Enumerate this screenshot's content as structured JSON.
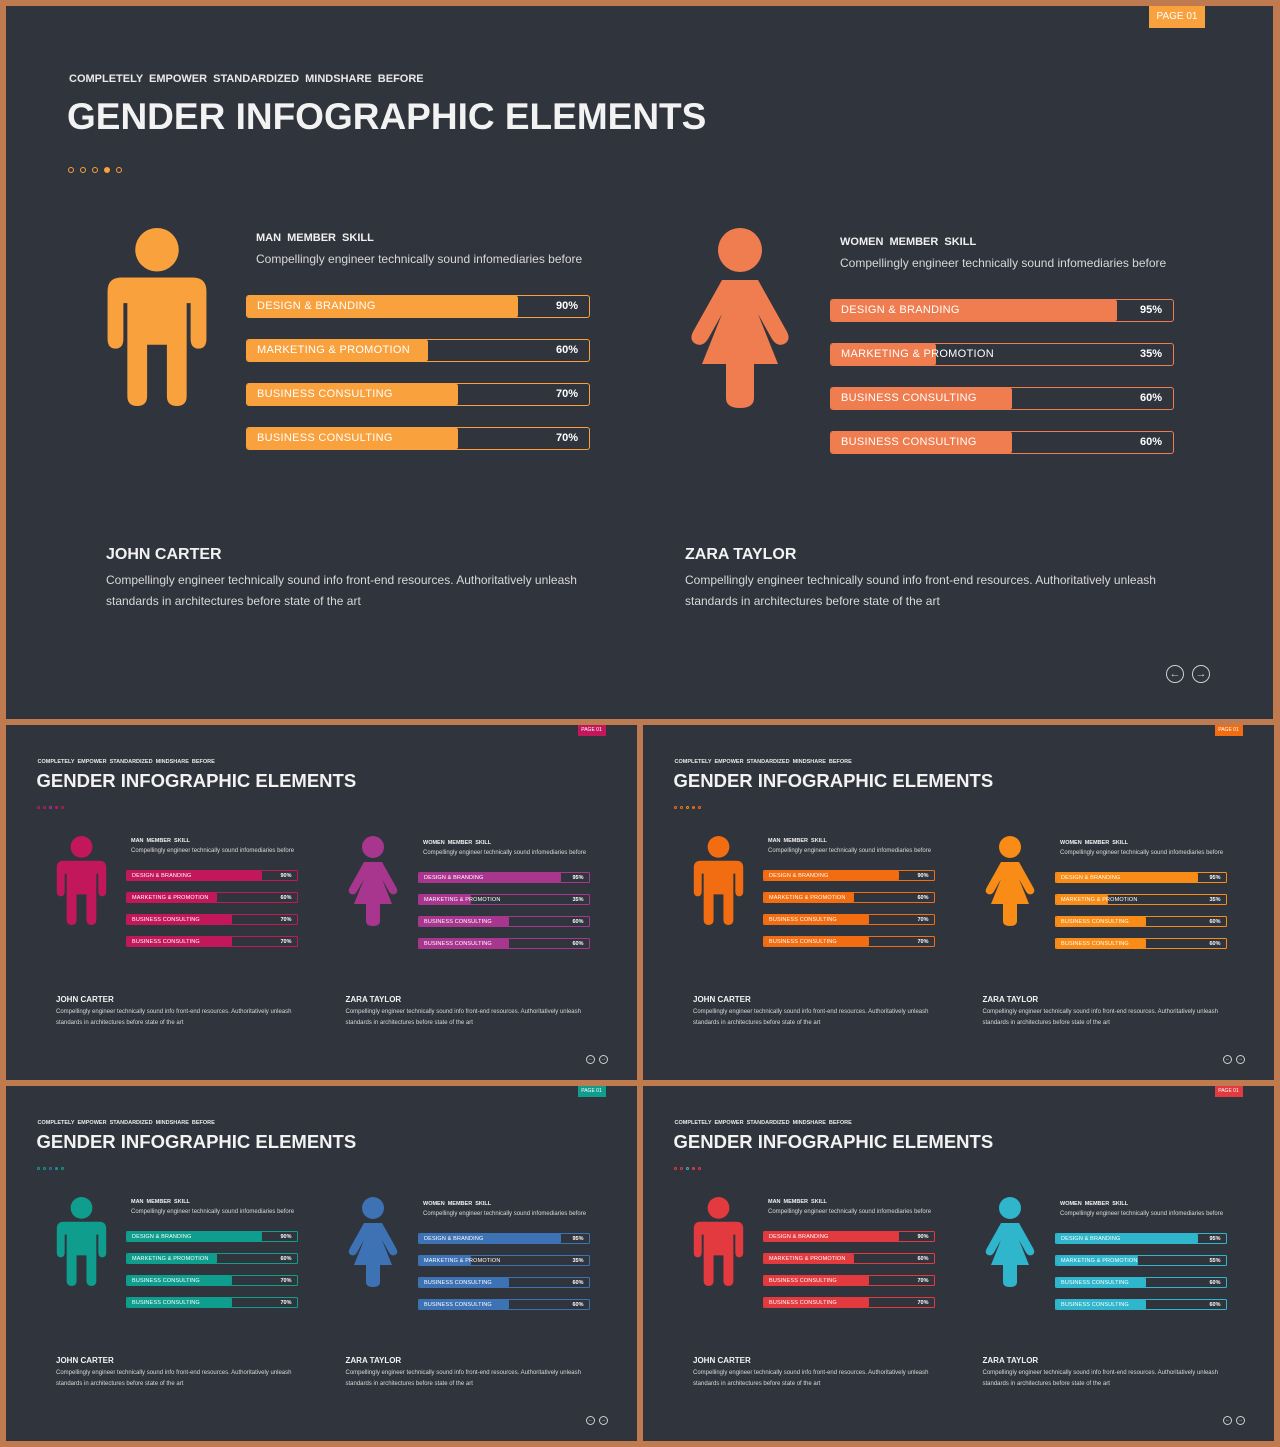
{
  "slides": [
    {
      "page_label": "PAGE 01",
      "subtitle": "COMPLETELY EMPOWER STANDARDIZED MINDSHARE BEFORE",
      "title": "GENDER INFOGRAPHIC ELEMENTS",
      "colors": {
        "man": "#f8a13d",
        "woman": "#ef7d4f",
        "badge": "#f8a13d",
        "dots": [
          "#f8a13d",
          "#f8a13d",
          "#f8a13d",
          "#f8a13d",
          "#f8a13d"
        ]
      },
      "man": {
        "heading": "MAN MEMBER SKILL",
        "desc": "Compellingly engineer technically sound infomediaries before",
        "skills": [
          {
            "label": "DESIGN & BRANDING",
            "percent": 90,
            "percent_label": "90%"
          },
          {
            "label": "MARKETING & PROMOTION",
            "percent": 60,
            "percent_label": "60%"
          },
          {
            "label": "BUSINESS CONSULTING",
            "percent": 70,
            "percent_label": "70%"
          },
          {
            "label": "BUSINESS CONSULTING",
            "percent": 70,
            "percent_label": "70%"
          }
        ]
      },
      "woman": {
        "heading": "WOMEN MEMBER SKILL",
        "desc": "Compellingly engineer technically sound infomediaries before",
        "skills": [
          {
            "label": "DESIGN & BRANDING",
            "percent": 95,
            "percent_label": "95%"
          },
          {
            "label": "MARKETING & PROMOTION",
            "percent": 35,
            "percent_label": "35%"
          },
          {
            "label": "BUSINESS CONSULTING",
            "percent": 60,
            "percent_label": "60%"
          },
          {
            "label": "BUSINESS CONSULTING",
            "percent": 60,
            "percent_label": "60%"
          }
        ]
      },
      "people": [
        {
          "name": "JOHN CARTER",
          "bio1": "Compellingly engineer technically sound info front-end resources. Authoritatively unleash",
          "bio2": "standards in architectures before state of the art"
        },
        {
          "name": "ZARA TAYLOR",
          "bio1": "Compellingly engineer technically sound info front-end resources. Authoritatively unleash",
          "bio2": "standards in architectures before state of the art"
        }
      ],
      "nav": {
        "prev_icon": "arrow-left-circle-icon",
        "next_icon": "arrow-right-circle-icon"
      }
    },
    {
      "page_label": "PAGE 01",
      "subtitle": "COMPLETELY EMPOWER STANDARDIZED MINDSHARE BEFORE",
      "title": "GENDER INFOGRAPHIC ELEMENTS",
      "colors": {
        "man": "#c2185b",
        "woman": "#a8368f",
        "badge": "#c2185b",
        "dots": [
          "#c2185b",
          "#c2185b",
          "#a8368f",
          "#c2185b",
          "#c2185b"
        ]
      },
      "man": {
        "heading": "MAN MEMBER SKILL",
        "desc": "Compellingly engineer technically sound infomediaries before",
        "skills": [
          {
            "label": "DESIGN & BRANDING",
            "percent": 90,
            "percent_label": "90%"
          },
          {
            "label": "MARKETING & PROMOTION",
            "percent": 60,
            "percent_label": "60%"
          },
          {
            "label": "BUSINESS CONSULTING",
            "percent": 70,
            "percent_label": "70%"
          },
          {
            "label": "BUSINESS CONSULTING",
            "percent": 70,
            "percent_label": "70%"
          }
        ]
      },
      "woman": {
        "heading": "WOMEN MEMBER SKILL",
        "desc": "Compellingly engineer technically sound infomediaries before",
        "skills": [
          {
            "label": "DESIGN & BRANDING",
            "percent": 95,
            "percent_label": "95%"
          },
          {
            "label": "MARKETING & PROMOTION",
            "percent": 35,
            "percent_label": "35%"
          },
          {
            "label": "BUSINESS CONSULTING",
            "percent": 60,
            "percent_label": "60%"
          },
          {
            "label": "BUSINESS CONSULTING",
            "percent": 60,
            "percent_label": "60%"
          }
        ]
      },
      "people": [
        {
          "name": "JOHN CARTER",
          "bio1": "Compellingly engineer technically sound info front-end resources. Authoritatively unleash",
          "bio2": "standards in architectures before state of the art"
        },
        {
          "name": "ZARA TAYLOR",
          "bio1": "Compellingly engineer technically sound info front-end resources. Authoritatively unleash",
          "bio2": "standards in architectures before state of the art"
        }
      ],
      "nav": {
        "prev_icon": "arrow-left-circle-icon",
        "next_icon": "arrow-right-circle-icon"
      }
    },
    {
      "page_label": "PAGE 01",
      "subtitle": "COMPLETELY EMPOWER STANDARDIZED MINDSHARE BEFORE",
      "title": "GENDER INFOGRAPHIC ELEMENTS",
      "colors": {
        "man": "#f26c12",
        "woman": "#f88c16",
        "badge": "#f26c12",
        "dots": [
          "#f26c12",
          "#f26c12",
          "#f88c16",
          "#f26c12",
          "#f26c12"
        ]
      },
      "man": {
        "heading": "MAN MEMBER SKILL",
        "desc": "Compellingly engineer technically sound infomediaries before",
        "skills": [
          {
            "label": "DESIGN & BRANDING",
            "percent": 90,
            "percent_label": "90%"
          },
          {
            "label": "MARKETING & PROMOTION",
            "percent": 60,
            "percent_label": "60%"
          },
          {
            "label": "BUSINESS CONSULTING",
            "percent": 70,
            "percent_label": "70%"
          },
          {
            "label": "BUSINESS CONSULTING",
            "percent": 70,
            "percent_label": "70%"
          }
        ]
      },
      "woman": {
        "heading": "WOMEN MEMBER SKILL",
        "desc": "Compellingly engineer technically sound infomediaries before",
        "skills": [
          {
            "label": "DESIGN & BRANDING",
            "percent": 95,
            "percent_label": "95%"
          },
          {
            "label": "MARKETING & PROMOTION",
            "percent": 35,
            "percent_label": "35%"
          },
          {
            "label": "BUSINESS CONSULTING",
            "percent": 60,
            "percent_label": "60%"
          },
          {
            "label": "BUSINESS CONSULTING",
            "percent": 60,
            "percent_label": "60%"
          }
        ]
      },
      "people": [
        {
          "name": "JOHN CARTER",
          "bio1": "Compellingly engineer technically sound info front-end resources. Authoritatively unleash",
          "bio2": "standards in architectures before state of the art"
        },
        {
          "name": "ZARA TAYLOR",
          "bio1": "Compellingly engineer technically sound info front-end resources. Authoritatively unleash",
          "bio2": "standards in architectures before state of the art"
        }
      ],
      "nav": {
        "prev_icon": "arrow-left-circle-icon",
        "next_icon": "arrow-right-circle-icon"
      }
    },
    {
      "page_label": "PAGE 01",
      "subtitle": "COMPLETELY EMPOWER STANDARDIZED MINDSHARE BEFORE",
      "title": "GENDER INFOGRAPHIC ELEMENTS",
      "colors": {
        "man": "#0f9d8e",
        "woman": "#3d72b4",
        "badge": "#0f9d8e",
        "dots": [
          "#0f9d8e",
          "#0f9d8e",
          "#3d72b4",
          "#0f9d8e",
          "#0f9d8e"
        ]
      },
      "man": {
        "heading": "MAN MEMBER SKILL",
        "desc": "Compellingly engineer technically sound infomediaries before",
        "skills": [
          {
            "label": "DESIGN & BRANDING",
            "percent": 90,
            "percent_label": "90%"
          },
          {
            "label": "MARKETING & PROMOTION",
            "percent": 60,
            "percent_label": "60%"
          },
          {
            "label": "BUSINESS CONSULTING",
            "percent": 70,
            "percent_label": "70%"
          },
          {
            "label": "BUSINESS CONSULTING",
            "percent": 70,
            "percent_label": "70%"
          }
        ]
      },
      "woman": {
        "heading": "WOMEN MEMBER SKILL",
        "desc": "Compellingly engineer technically sound infomediaries before",
        "skills": [
          {
            "label": "DESIGN & BRANDING",
            "percent": 95,
            "percent_label": "95%"
          },
          {
            "label": "MARKETING & PROMOTION",
            "percent": 35,
            "percent_label": "35%"
          },
          {
            "label": "BUSINESS CONSULTING",
            "percent": 60,
            "percent_label": "60%"
          },
          {
            "label": "BUSINESS CONSULTING",
            "percent": 60,
            "percent_label": "60%"
          }
        ]
      },
      "people": [
        {
          "name": "JOHN CARTER",
          "bio1": "Compellingly engineer technically sound info front-end resources. Authoritatively unleash",
          "bio2": "standards in architectures before state of the art"
        },
        {
          "name": "ZARA TAYLOR",
          "bio1": "Compellingly engineer technically sound info front-end resources. Authoritatively unleash",
          "bio2": "standards in architectures before state of the art"
        }
      ],
      "nav": {
        "prev_icon": "arrow-left-circle-icon",
        "next_icon": "arrow-right-circle-icon"
      }
    },
    {
      "page_label": "PAGE 01",
      "subtitle": "COMPLETELY EMPOWER STANDARDIZED MINDSHARE BEFORE",
      "title": "GENDER INFOGRAPHIC ELEMENTS",
      "colors": {
        "man": "#e23a3e",
        "woman": "#2fb5cc",
        "badge": "#e23a3e",
        "dots": [
          "#e23a3e",
          "#e23a3e",
          "#2fb5cc",
          "#e23a3e",
          "#e23a3e"
        ]
      },
      "man": {
        "heading": "MAN MEMBER SKILL",
        "desc": "Compellingly engineer technically sound infomediaries before",
        "skills": [
          {
            "label": "DESIGN & BRANDING",
            "percent": 90,
            "percent_label": "90%"
          },
          {
            "label": "MARKETING & PROMOTION",
            "percent": 60,
            "percent_label": "60%"
          },
          {
            "label": "BUSINESS CONSULTING",
            "percent": 70,
            "percent_label": "70%"
          },
          {
            "label": "BUSINESS CONSULTING",
            "percent": 70,
            "percent_label": "70%"
          }
        ]
      },
      "woman": {
        "heading": "WOMEN MEMBER SKILL",
        "desc": "Compellingly engineer technically sound infomediaries before",
        "skills": [
          {
            "label": "DESIGN & BRANDING",
            "percent": 95,
            "percent_label": "95%"
          },
          {
            "label": "MARKETING & PROMOTION",
            "percent": 55,
            "percent_label": "55%"
          },
          {
            "label": "BUSINESS CONSULTING",
            "percent": 60,
            "percent_label": "60%"
          },
          {
            "label": "BUSINESS CONSULTING",
            "percent": 60,
            "percent_label": "60%"
          }
        ]
      },
      "people": [
        {
          "name": "JOHN CARTER",
          "bio1": "Compellingly engineer technically sound info front-end resources. Authoritatively unleash",
          "bio2": "standards in architectures before state of the art"
        },
        {
          "name": "ZARA TAYLOR",
          "bio1": "Compellingly engineer technically sound info front-end resources. Authoritatively unleash",
          "bio2": "standards in architectures before state of the art"
        }
      ],
      "nav": {
        "prev_icon": "arrow-left-circle-icon",
        "next_icon": "arrow-right-circle-icon"
      }
    }
  ]
}
